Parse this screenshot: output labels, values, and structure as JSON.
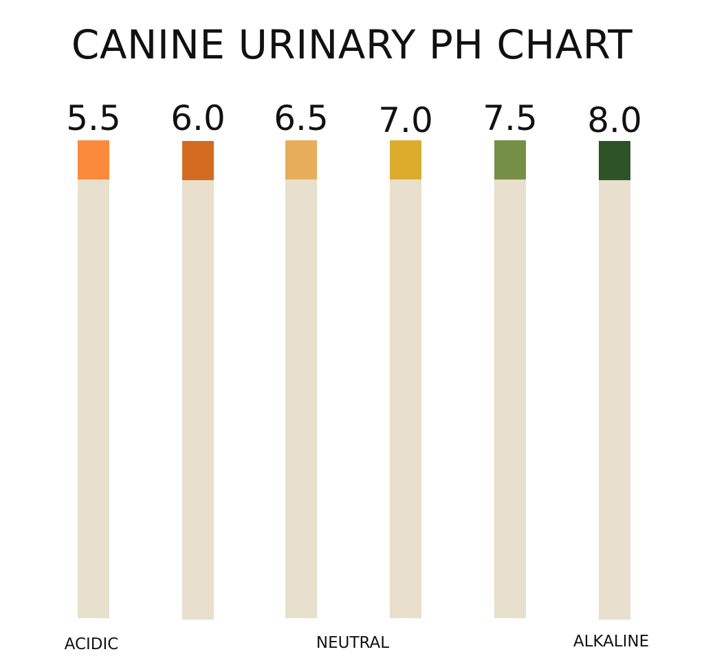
{
  "title": "CANINE URINARY PH CHART",
  "strips": [
    {
      "value": "5.5",
      "color": "#fb8a3c"
    },
    {
      "value": "6.0",
      "color": "#d36b1f"
    },
    {
      "value": "6.5",
      "color": "#e7ad5a"
    },
    {
      "value": "7.0",
      "color": "#dcad2d"
    },
    {
      "value": "7.5",
      "color": "#758f46"
    },
    {
      "value": "8.0",
      "color": "#2e5329"
    }
  ],
  "paper_color": "#e8dfcc",
  "zones": {
    "acidic": "ACIDIC",
    "neutral": "NEUTRAL",
    "alkaline": "ALKALINE"
  }
}
